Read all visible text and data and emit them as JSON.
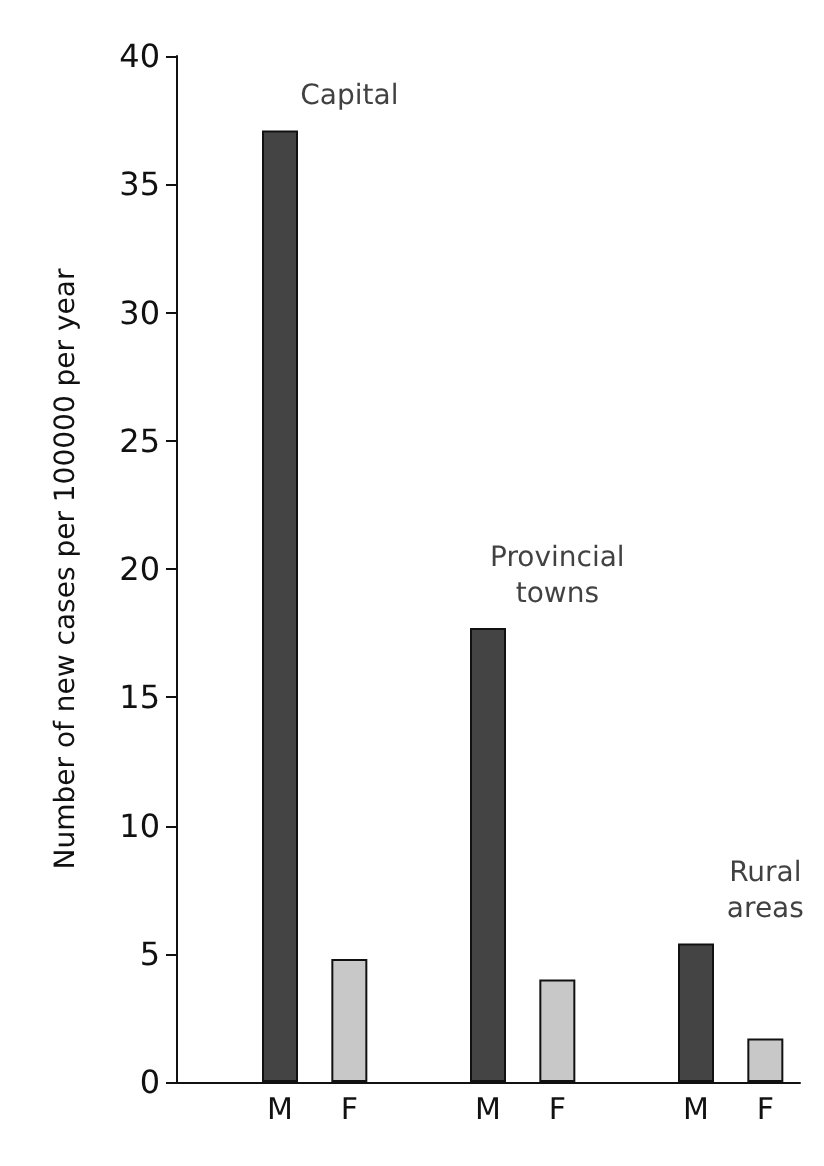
{
  "chart_data": {
    "type": "bar",
    "ylabel": "Number of new cases per 100000 per year",
    "categories": [
      null,
      "M",
      "F",
      null,
      "M",
      "F",
      null,
      "M",
      "F"
    ],
    "values": [
      null,
      37.1,
      4.8,
      null,
      17.7,
      4.0,
      null,
      5.4,
      1.7
    ],
    "colors": [
      "#444444",
      "#444444",
      "#c8c8c8",
      "#444444",
      "#444444",
      "#c8c8c8",
      "#444444",
      "#444444",
      "#c8c8c8"
    ],
    "ylim": [
      0,
      40
    ],
    "yticks": [
      0,
      5,
      10,
      15,
      20,
      25,
      30,
      35,
      40
    ],
    "grid": false,
    "annotations": [
      "Capital",
      "Provincial\ntowns",
      "Rural\nareas"
    ]
  }
}
